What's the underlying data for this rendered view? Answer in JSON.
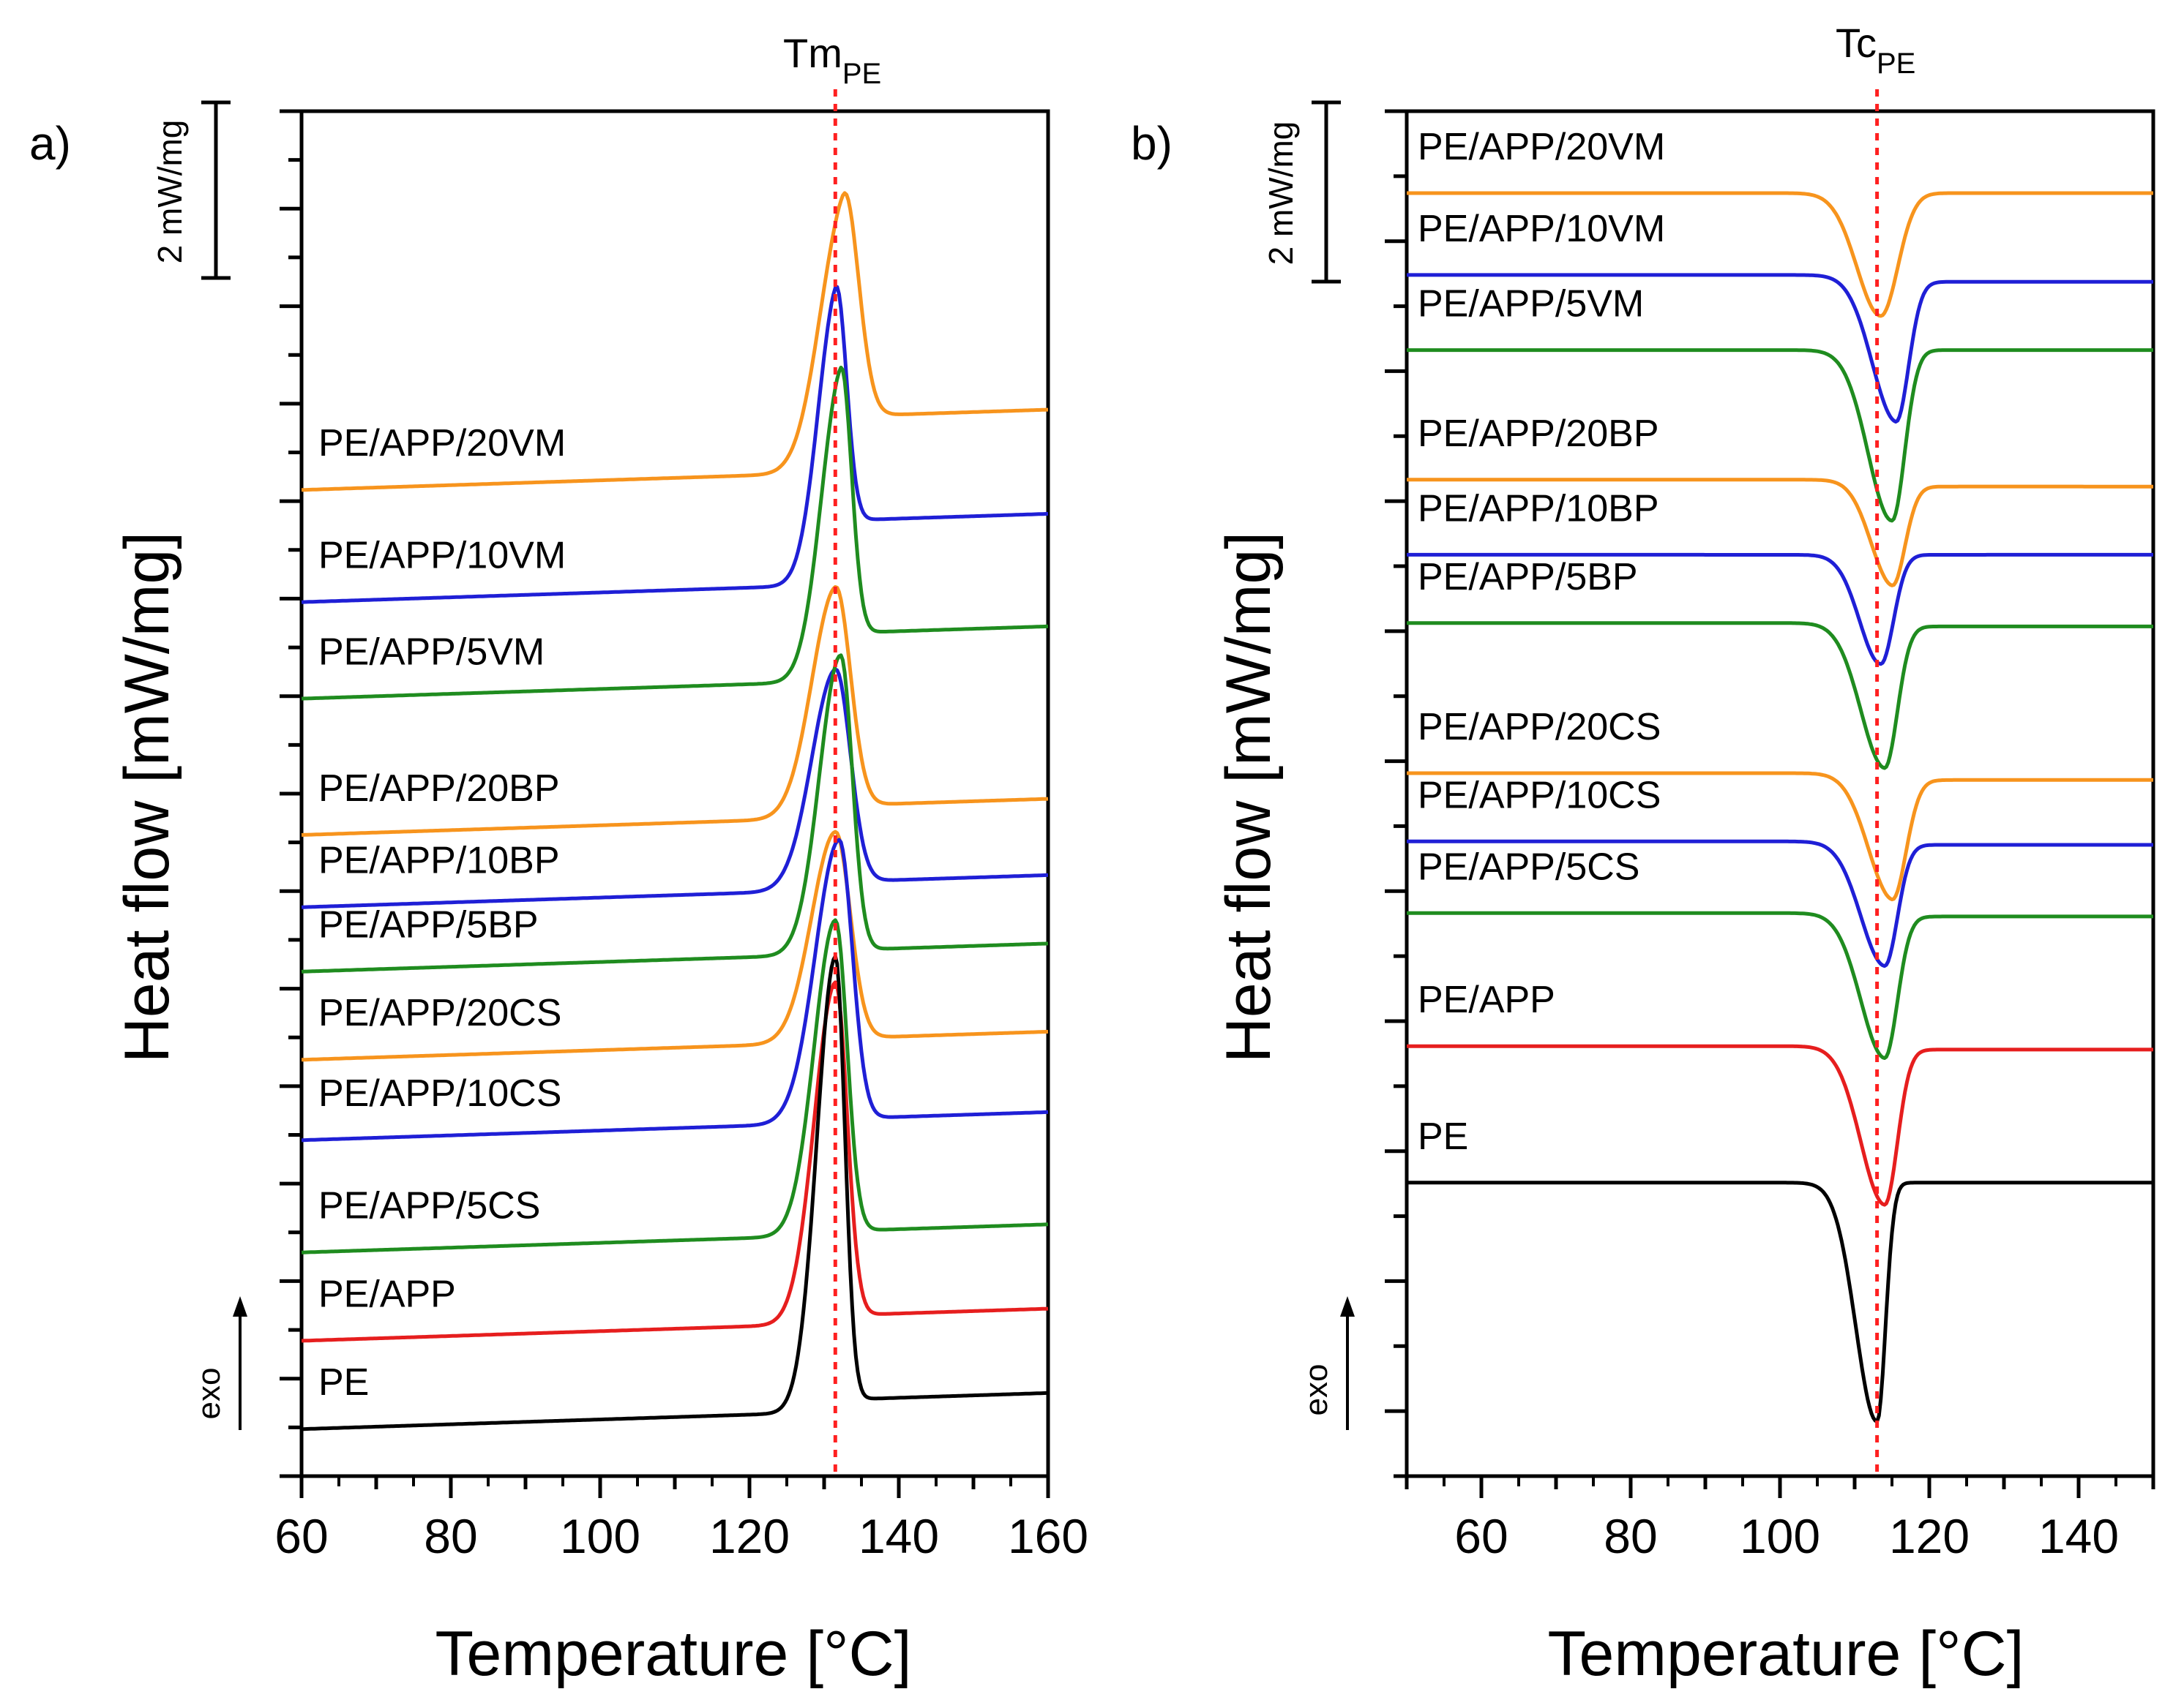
{
  "chart_data": [
    {
      "panel": "a)",
      "type": "line",
      "xlabel": "Temperature [°C]",
      "ylabel": "Heat flow [mW/mg]",
      "xlim": [
        60,
        160
      ],
      "xticks": [
        60,
        80,
        100,
        120,
        140,
        160
      ],
      "y_units": "mW/mg",
      "scale_bar": "2 mW/mg",
      "direction_label": "exo",
      "direction": "up",
      "marker": {
        "main": "Tm",
        "sub": "PE",
        "x": 131.5
      },
      "series": [
        {
          "name": "PE/APP/20VM",
          "color": "#f7941d",
          "dir": 1,
          "baseline": 7.5,
          "tail": 8.2,
          "slope": 0.3,
          "peak_x": 132.5,
          "peak_height": 3.1,
          "width_left": 4.5,
          "width_right": 2.8
        },
        {
          "name": "PE/APP/10VM",
          "color": "#1f1fd6",
          "dir": 1,
          "baseline": 6.1,
          "tail": 6.9,
          "slope": 0.3,
          "peak_x": 131.5,
          "peak_height": 3.3,
          "width_left": 3.5,
          "width_right": 2.0
        },
        {
          "name": "PE/APP/5VM",
          "color": "#1f8c1f",
          "dir": 1,
          "baseline": 4.9,
          "tail": 5.5,
          "slope": 0.3,
          "peak_x": 132.2,
          "peak_height": 3.6,
          "width_left": 3.8,
          "width_right": 2.0
        },
        {
          "name": "PE/APP/20BP",
          "color": "#f7941d",
          "dir": 1,
          "baseline": 3.2,
          "tail": 3.35,
          "slope": 0.3,
          "peak_x": 131.5,
          "peak_height": 2.8,
          "width_left": 4.5,
          "width_right": 2.8
        },
        {
          "name": "PE/APP/10BP",
          "color": "#1f1fd6",
          "dir": 1,
          "baseline": 2.3,
          "tail": 2.4,
          "slope": 0.3,
          "peak_x": 131.5,
          "peak_height": 2.7,
          "width_left": 4.5,
          "width_right": 2.8
        },
        {
          "name": "PE/APP/5BP",
          "color": "#1f8c1f",
          "dir": 1,
          "baseline": 1.5,
          "tail": 1.55,
          "slope": 0.3,
          "peak_x": 132.2,
          "peak_height": 3.7,
          "width_left": 4.0,
          "width_right": 2.2
        },
        {
          "name": "PE/APP/20CS",
          "color": "#f7941d",
          "dir": 1,
          "baseline": 0.4,
          "tail": 0.45,
          "slope": 0.3,
          "peak_x": 131.5,
          "peak_height": 2.6,
          "width_left": 4.5,
          "width_right": 2.8
        },
        {
          "name": "PE/APP/10CS",
          "color": "#1f1fd6",
          "dir": 1,
          "baseline": -0.6,
          "tail": -0.55,
          "slope": 0.3,
          "peak_x": 132.0,
          "peak_height": 3.5,
          "width_left": 4.5,
          "width_right": 2.5
        },
        {
          "name": "PE/APP/5CS",
          "color": "#1f8c1f",
          "dir": 1,
          "baseline": -2.0,
          "tail": -1.95,
          "slope": 0.3,
          "peak_x": 131.5,
          "peak_height": 3.9,
          "width_left": 4.0,
          "width_right": 2.2
        },
        {
          "name": "PE/APP",
          "color": "#e61e1e",
          "dir": 1,
          "baseline": -3.1,
          "tail": -3.0,
          "slope": 0.3,
          "peak_x": 131.5,
          "peak_height": 4.2,
          "width_left": 4.0,
          "width_right": 2.2
        },
        {
          "name": "PE",
          "color": "#000000",
          "dir": 1,
          "baseline": -4.2,
          "tail": -4.05,
          "slope": 0.3,
          "peak_x": 131.5,
          "peak_height": 5.6,
          "width_left": 3.5,
          "width_right": 1.8
        }
      ]
    },
    {
      "panel": "b)",
      "type": "line",
      "xlabel": "Temperature [°C]",
      "ylabel": "Heat flow [mW/mg]",
      "xlim": [
        50,
        150
      ],
      "xticks": [
        60,
        80,
        100,
        120,
        140
      ],
      "y_units": "mW/mg",
      "scale_bar": "2 mW/mg",
      "direction_label": "exo",
      "direction": "up",
      "marker": {
        "main": "Tc",
        "sub": "PE",
        "x": 113.0
      },
      "series": [
        {
          "name": "PE/APP/20VM",
          "color": "#f7941d",
          "dir": -1,
          "baseline": 8.3,
          "tail": 8.3,
          "slope": 0.0,
          "peak_x": 113.5,
          "peak_height": 1.8,
          "width_left": 4.5,
          "width_right": 3.2
        },
        {
          "name": "PE/APP/10VM",
          "color": "#1f1fd6",
          "dir": -1,
          "baseline": 7.1,
          "tail": 7.0,
          "slope": 0.0,
          "peak_x": 115.5,
          "peak_height": 2.1,
          "width_left": 4.5,
          "width_right": 2.4
        },
        {
          "name": "PE/APP/5VM",
          "color": "#1f8c1f",
          "dir": -1,
          "baseline": 6.0,
          "tail": 6.0,
          "slope": 0.0,
          "peak_x": 115.0,
          "peak_height": 2.5,
          "width_left": 4.5,
          "width_right": 2.4
        },
        {
          "name": "PE/APP/20BP",
          "color": "#f7941d",
          "dir": -1,
          "baseline": 4.1,
          "tail": 4.0,
          "slope": 0.0,
          "peak_x": 115.0,
          "peak_height": 1.5,
          "width_left": 4.0,
          "width_right": 2.4
        },
        {
          "name": "PE/APP/10BP",
          "color": "#1f1fd6",
          "dir": -1,
          "baseline": 3.0,
          "tail": 3.0,
          "slope": 0.0,
          "peak_x": 113.5,
          "peak_height": 1.6,
          "width_left": 4.0,
          "width_right": 2.4
        },
        {
          "name": "PE/APP/5BP",
          "color": "#1f8c1f",
          "dir": -1,
          "baseline": 2.0,
          "tail": 1.95,
          "slope": 0.0,
          "peak_x": 114.0,
          "peak_height": 2.1,
          "width_left": 4.5,
          "width_right": 2.4
        },
        {
          "name": "PE/APP/20CS",
          "color": "#f7941d",
          "dir": -1,
          "baseline": -0.2,
          "tail": -0.3,
          "slope": 0.0,
          "peak_x": 115.0,
          "peak_height": 1.8,
          "width_left": 4.5,
          "width_right": 2.6
        },
        {
          "name": "PE/APP/10CS",
          "color": "#1f1fd6",
          "dir": -1,
          "baseline": -1.2,
          "tail": -1.25,
          "slope": 0.0,
          "peak_x": 114.0,
          "peak_height": 1.8,
          "width_left": 4.5,
          "width_right": 2.4
        },
        {
          "name": "PE/APP/5CS",
          "color": "#1f8c1f",
          "dir": -1,
          "baseline": -2.25,
          "tail": -2.3,
          "slope": 0.0,
          "peak_x": 114.0,
          "peak_height": 2.1,
          "width_left": 4.5,
          "width_right": 2.4
        },
        {
          "name": "PE/APP",
          "color": "#e61e1e",
          "dir": -1,
          "baseline": -4.2,
          "tail": -4.25,
          "slope": 0.0,
          "peak_x": 114.0,
          "peak_height": 2.3,
          "width_left": 4.5,
          "width_right": 2.4
        },
        {
          "name": "PE",
          "color": "#000000",
          "dir": -1,
          "baseline": -6.2,
          "tail": -6.2,
          "slope": 0.0,
          "peak_x": 113.0,
          "peak_height": 3.5,
          "width_left": 4.0,
          "width_right": 1.6
        }
      ]
    }
  ]
}
